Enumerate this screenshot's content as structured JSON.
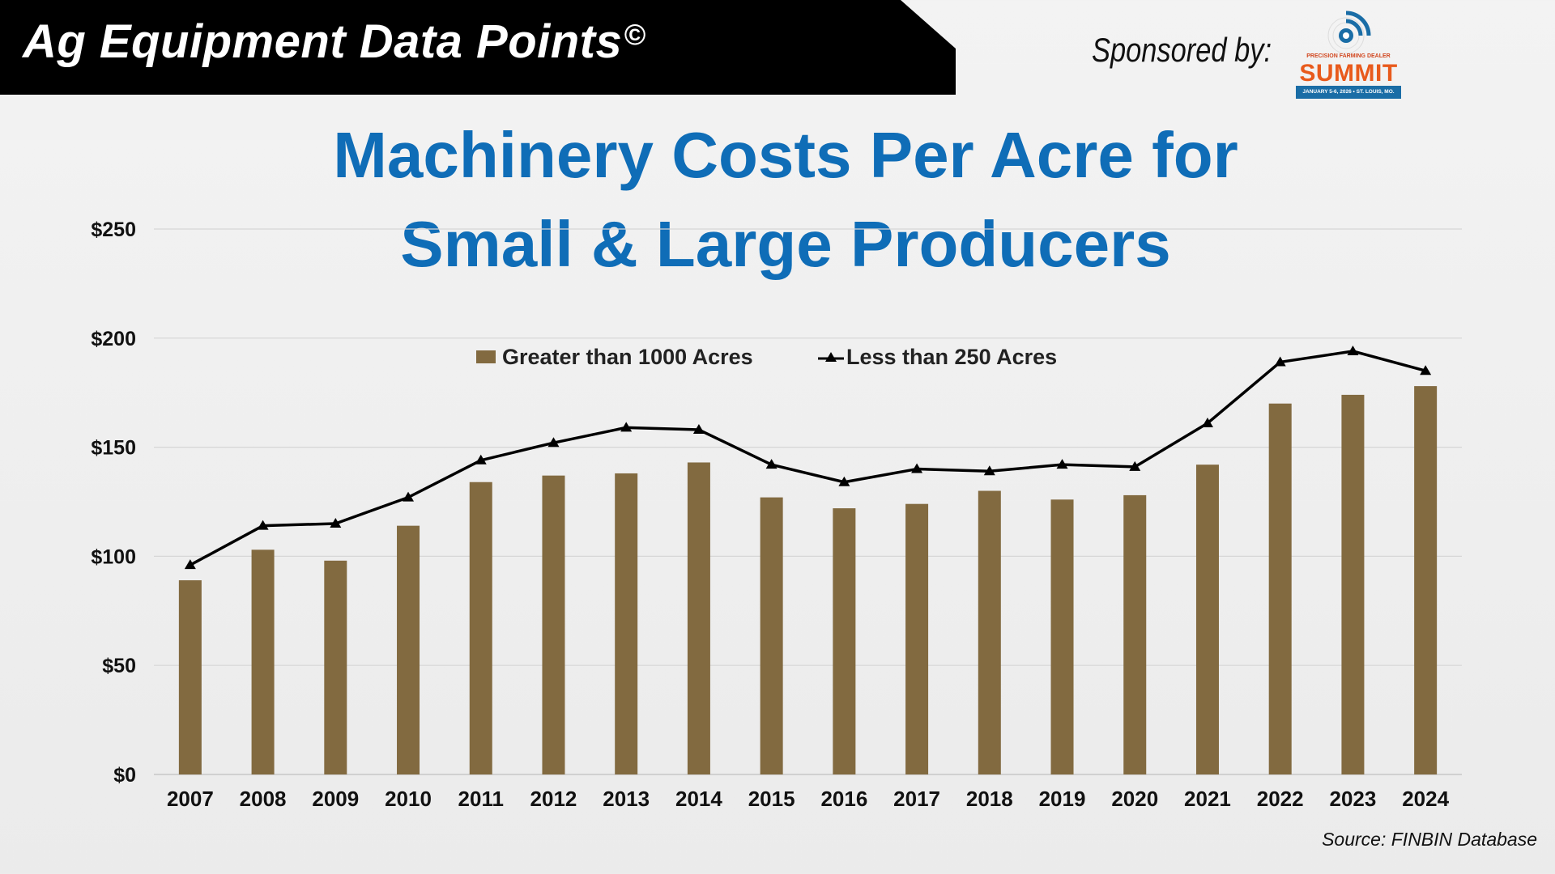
{
  "header": {
    "banner_title": "Ag Equipment Data Points",
    "copyright_mark": "©",
    "sponsor_label": "Sponsored by:",
    "sponsor_logo": {
      "icon": "wifi-target-icon",
      "small_text": "PRECISION FARMING DEALER",
      "name": "SUMMIT",
      "date_text": "JANUARY 5-6, 2026 • ST. LOUIS, MO."
    }
  },
  "colors": {
    "bar": "#826a40",
    "line": "#000000",
    "title": "#0f6db7",
    "grid": "#d6d6d6"
  },
  "footer": {
    "source": "Source: FINBIN Database"
  },
  "chart_data": {
    "type": "bar",
    "title_line1": "Machinery Costs Per Acre for",
    "title_line2": "Small & Large Producers",
    "categories": [
      "2007",
      "2008",
      "2009",
      "2010",
      "2011",
      "2012",
      "2013",
      "2014",
      "2015",
      "2016",
      "2017",
      "2018",
      "2019",
      "2020",
      "2021",
      "2022",
      "2023",
      "2024"
    ],
    "series": [
      {
        "name": "Greater than 1000 Acres",
        "kind": "bar",
        "values": [
          89,
          103,
          98,
          114,
          134,
          137,
          138,
          143,
          127,
          122,
          124,
          130,
          126,
          128,
          142,
          170,
          174,
          178
        ]
      },
      {
        "name": "Less than 250 Acres",
        "kind": "line",
        "marker": "triangle",
        "values": [
          96,
          114,
          115,
          127,
          144,
          152,
          159,
          158,
          142,
          134,
          140,
          139,
          142,
          141,
          161,
          189,
          194,
          185
        ]
      }
    ],
    "yticks": [
      "$0",
      "$50",
      "$100",
      "$150",
      "$200",
      "$250"
    ],
    "ylim": [
      0,
      250
    ],
    "xlabel": "",
    "ylabel": "",
    "legend_position": "top-center",
    "grid": true
  }
}
